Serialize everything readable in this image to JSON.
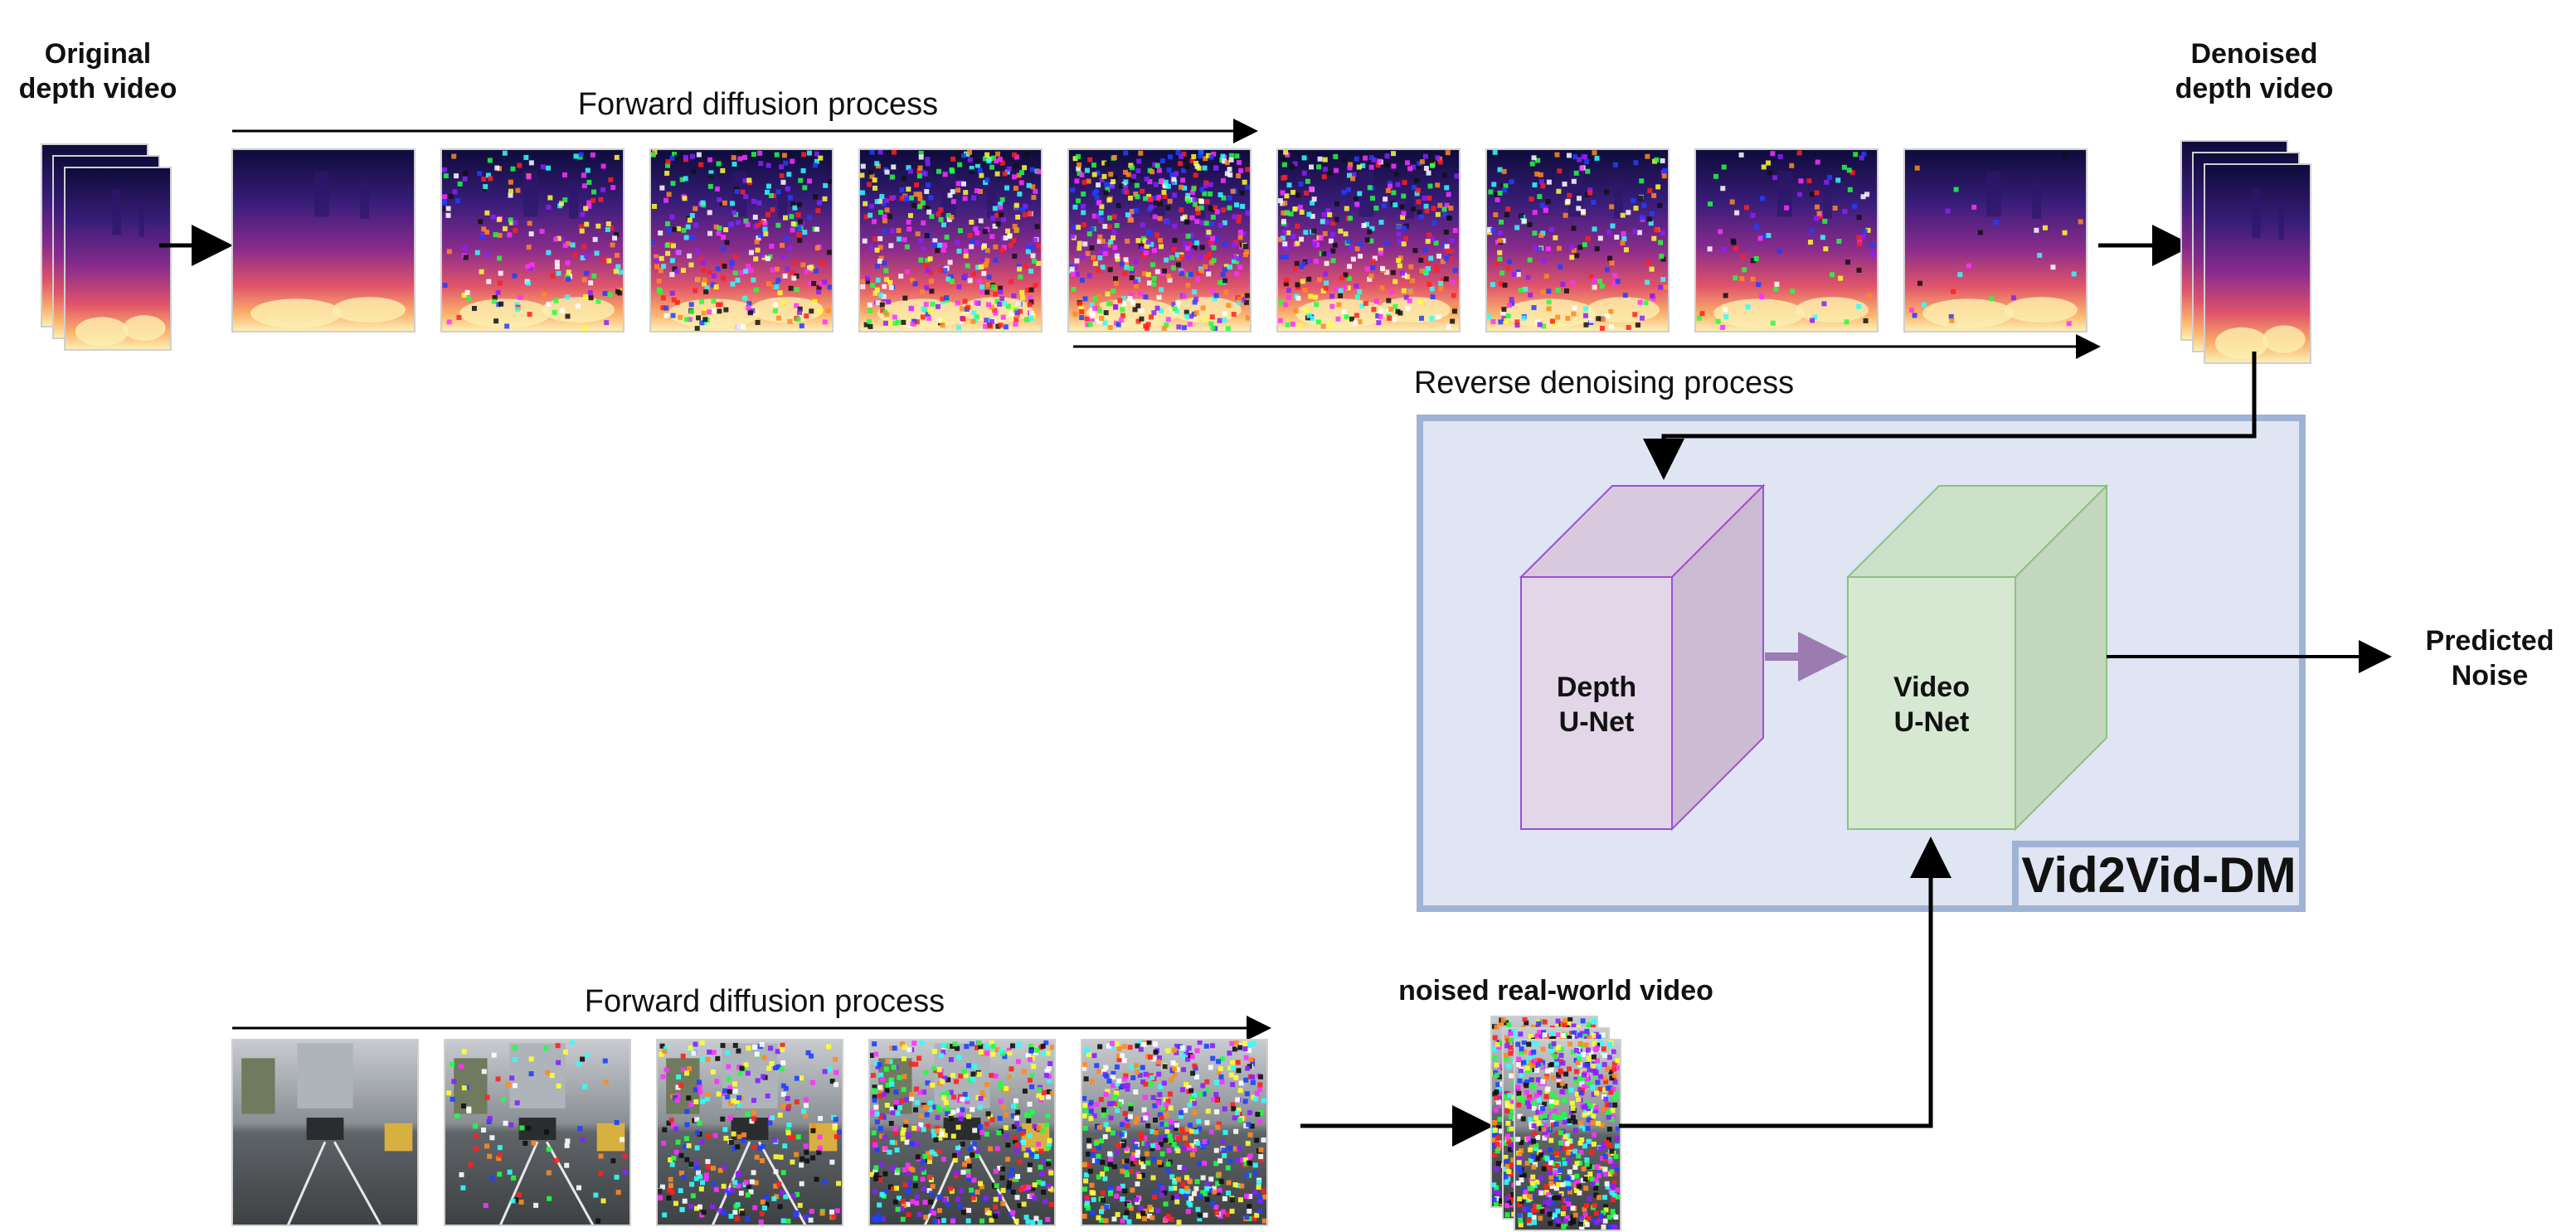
{
  "labels": {
    "original_depth_video": [
      "Original",
      "depth video"
    ],
    "denoised_depth_video": [
      "Denoised",
      "depth video"
    ],
    "forward_diffusion_top": "Forward diffusion process",
    "reverse_denoising": "Reverse denoising process",
    "forward_diffusion_bottom": "Forward diffusion process",
    "noised_real_world_video": "noised real-world video",
    "predicted_noise": [
      "Predicted",
      "Noise"
    ],
    "depth_unet": [
      "Depth",
      "U-Net"
    ],
    "video_unet": [
      "Video",
      "U-Net"
    ],
    "model_name": "Vid2Vid-DM"
  },
  "colors": {
    "container_fill": "#dfe5f2",
    "container_stroke": "#9fb3d6",
    "depth_unet_fill": "#e2d6e8",
    "depth_unet_stroke": "#9b4fd6",
    "video_unet_fill": "#d6e8d2",
    "video_unet_stroke": "#8fbf84",
    "arrow_purple": "#9b7bb0",
    "arrow_black": "#000000"
  },
  "depth_frames": {
    "noise_levels_forward": [
      0,
      0.35,
      0.6,
      0.8,
      0.95
    ],
    "noise_levels_reverse": [
      0.7,
      0.45,
      0.2,
      0.05
    ]
  },
  "real_frames": {
    "noise_levels": [
      0,
      0.15,
      0.5,
      0.85,
      1.0
    ]
  }
}
